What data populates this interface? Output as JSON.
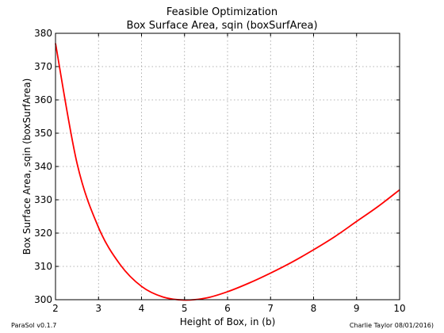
{
  "chart_data": {
    "type": "line",
    "title": "Feasible Optimization",
    "subtitle": "Box Surface Area, sqin (boxSurfArea)",
    "xlabel": "Height of Box, in (b)",
    "ylabel": "Box Surface Area, sqin (boxSurfArea)",
    "xlim": [
      2,
      10
    ],
    "ylim": [
      300,
      380
    ],
    "xticks": [
      2,
      3,
      4,
      5,
      6,
      7,
      8,
      9,
      10
    ],
    "yticks": [
      300,
      310,
      320,
      330,
      340,
      350,
      360,
      370,
      380
    ],
    "grid": true,
    "line_color": "#ff0000",
    "series": [
      {
        "x": [
          2.0,
          2.5,
          3.0,
          3.5,
          4.0,
          4.5,
          5.0,
          5.5,
          6.0,
          6.5,
          7.0,
          7.5,
          8.0,
          8.5,
          9.0,
          9.5,
          10.0
        ],
        "y": [
          377,
          341,
          321.7,
          310.6,
          304.0,
          300.8,
          299.9,
          300.5,
          302.4,
          305.0,
          308.0,
          311.3,
          315.0,
          319.0,
          323.5,
          328.0,
          333.0
        ]
      }
    ]
  },
  "footer": {
    "left": "ParaSol v0.1.7",
    "right": "Charlie Taylor 08/01/2016)"
  }
}
